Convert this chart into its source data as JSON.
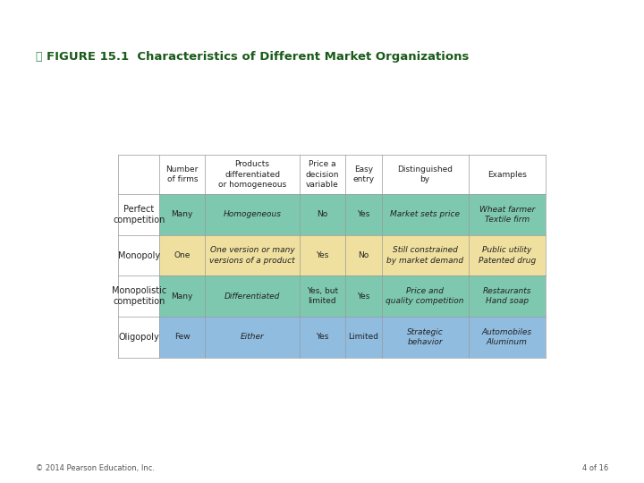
{
  "title_icon": "ⓘ",
  "title_text": "FIGURE 15.1  Characteristics of Different Market Organizations",
  "title_color_icon": "#2e8b57",
  "title_color_text": "#1a5a1a",
  "footer_left": "© 2014 Pearson Education, Inc.",
  "footer_right": "4 of 16",
  "col_headers": [
    "Number\nof firms",
    "Products\ndifferentiated\nor homogeneous",
    "Price a\ndecision\nvariable",
    "Easy\nentry",
    "Distinguished\nby",
    "Examples"
  ],
  "row_labels": [
    "Perfect\ncompetition",
    "Monopoly",
    "Monopolistic\ncompetition",
    "Oligopoly"
  ],
  "cell_data": [
    [
      "Many",
      "Homogeneous",
      "No",
      "Yes",
      "Market sets price",
      "Wheat farmer\nTextile firm"
    ],
    [
      "One",
      "One version or many\nversions of a product",
      "Yes",
      "No",
      "Still constrained\nby market demand",
      "Public utility\nPatented drug"
    ],
    [
      "Many",
      "Differentiated",
      "Yes, but\nlimited",
      "Yes",
      "Price and\nquality competition",
      "Restaurants\nHand soap"
    ],
    [
      "Few",
      "Either",
      "Yes",
      "Limited",
      "Strategic\nbehavior",
      "Automobiles\nAluminum"
    ]
  ],
  "row_colors": [
    "#7ec8b0",
    "#f0e0a0",
    "#7ec8b0",
    "#90bce0"
  ],
  "background_color": "#ffffff",
  "header_bg": "#ffffff",
  "border_color": "#999999",
  "text_color": "#222222",
  "title_fontsize": 9.5,
  "cell_fontsize": 6.5,
  "header_fontsize": 6.5,
  "row_label_fontsize": 7.0,
  "footer_fontsize": 6.0
}
